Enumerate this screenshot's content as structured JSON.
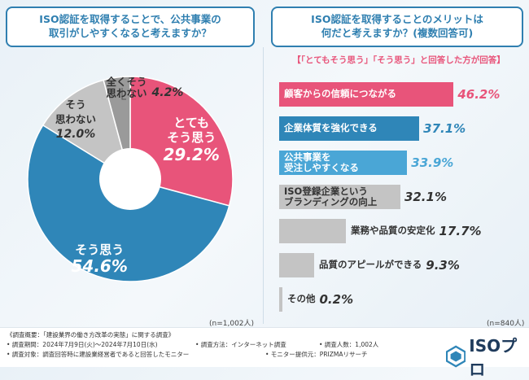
{
  "left_question": "ISO認証を取得することで、公共事業の\n取引がしやすくなると考えますか？",
  "right_question": "ISO認証を取得することのメリットは\n何だと考えますか？(複数回答可)",
  "right_subtitle": "【「とてもそう思う」「そう思う」と回答した方が回答】",
  "left_n": "(n=1,002人)",
  "right_n": "(n=840人)",
  "colors": {
    "pink": "#e8547a",
    "blue": "#2f86b8",
    "gray": "#c4c4c4",
    "dark_gray": "#9a9a9a",
    "border": "#2f7fb0"
  },
  "chart_data": [
    {
      "type": "pie",
      "title": "ISO認証を取得することで、公共事業の取引がしやすくなると考えますか？",
      "slices": [
        {
          "label": "とても\nそう思う",
          "value": 29.2,
          "pct_text": "29.2%",
          "color": "#e8547a"
        },
        {
          "label": "そう思う",
          "value": 54.6,
          "pct_text": "54.6%",
          "color": "#2f86b8"
        },
        {
          "label": "そう\n思わない",
          "value": 12.0,
          "pct_text": "12.0%",
          "color": "#c4c4c4"
        },
        {
          "label": "全くそう\n思わない",
          "value": 4.2,
          "pct_text": "4.2%",
          "color": "#9a9a9a"
        }
      ]
    },
    {
      "type": "bar",
      "orientation": "horizontal",
      "title": "ISO認証を取得することのメリットは何だと考えますか？(複数回答可)",
      "categories": [
        "顧客からの信頼につながる",
        "企業体質を強化できる",
        "公共事業を\n受注しやすくなる",
        "ISO登録企業という\nブランディングの向上",
        "業務や品質の安定化",
        "品質のアピールができる",
        "その他"
      ],
      "values": [
        46.2,
        37.1,
        33.9,
        32.1,
        17.7,
        9.3,
        0.2
      ],
      "pct_texts": [
        "46.2%",
        "37.1%",
        "33.9%",
        "32.1%",
        "17.7%",
        "9.3%",
        "0.2%"
      ],
      "xlim": [
        0,
        50
      ]
    }
  ],
  "footer": {
    "overview": "《調査概要：「建設業界の働き方改革の実態」に関する調査》",
    "period": "• 調査期間：2024年7月9日(火)～2024年7月10日(水)",
    "method": "• 調査方法：インターネット調査",
    "count": "• 調査人数：1,002人",
    "target": "• 調査対象：調査回答時に建設業経営者であると回答したモニター",
    "provider": "• モニター提供元：PRIZMAリサーチ"
  },
  "brand": "ISOプロ"
}
